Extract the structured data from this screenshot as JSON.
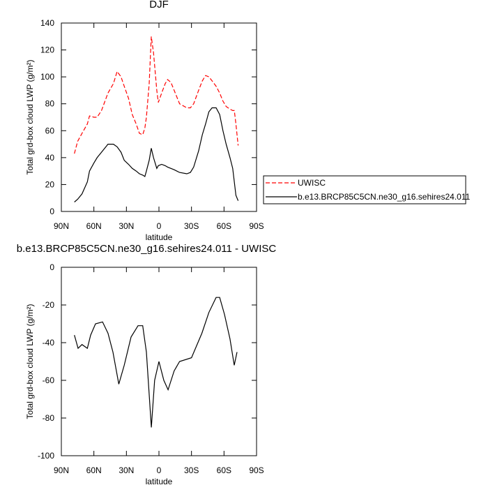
{
  "chart_data": [
    {
      "type": "line",
      "title": "DJF",
      "xlabel": "latitude",
      "ylabel": "Total grd-box cloud LWP (g/m²)",
      "x": [
        78,
        75,
        71,
        66,
        64,
        60,
        57,
        53,
        47,
        42,
        38.6,
        35,
        32,
        28,
        24.6,
        21,
        18,
        15,
        13,
        11.6,
        9,
        7.1,
        5,
        2,
        0.6,
        -2.5,
        -5.8,
        -8,
        -11,
        -14,
        -19,
        -25.7,
        -29,
        -32,
        -36.6,
        -40,
        -43,
        -46,
        -49,
        -52.7,
        -56,
        -59,
        -62,
        -65.5,
        -68,
        -69.5,
        -71,
        -73
      ],
      "series": [
        {
          "name": "UWISC",
          "color": "#ff0000",
          "dash": true,
          "values": [
            43,
            52,
            58,
            65,
            71,
            70,
            70,
            75,
            88,
            95,
            104,
            100,
            93,
            84,
            72,
            65,
            58,
            57,
            62,
            70,
            95,
            130,
            118,
            90,
            81,
            88,
            95,
            98,
            96,
            90,
            80,
            77,
            77,
            80,
            90,
            97,
            101,
            100,
            97,
            93,
            88,
            82,
            78,
            76,
            75,
            75,
            65,
            49
          ]
        },
        {
          "name": "b.e13.BRCP85C5CN.ne30_g16.sehires24.011",
          "color": "#000000",
          "values": [
            7,
            9,
            13,
            22,
            30,
            36,
            40,
            44,
            50,
            50,
            48,
            44,
            38,
            35,
            32,
            30,
            28,
            27,
            26,
            30,
            38,
            47,
            40,
            32,
            34,
            35,
            34,
            33,
            32,
            31,
            29,
            28,
            29,
            33,
            45,
            57,
            65,
            74,
            77,
            77,
            72,
            60,
            50,
            40,
            32,
            22,
            12,
            8
          ]
        }
      ],
      "xlim": [
        90,
        -90
      ],
      "xticks": [
        {
          "value": 90,
          "label": "90N"
        },
        {
          "value": 60,
          "label": "60N"
        },
        {
          "value": 30,
          "label": "30N"
        },
        0,
        {
          "value": -30,
          "label": "30S"
        },
        {
          "value": -60,
          "label": "60S"
        },
        {
          "value": -90,
          "label": "90S"
        }
      ],
      "ylim": [
        0,
        140
      ],
      "yticks": [
        0,
        20,
        40,
        60,
        80,
        100,
        120,
        140
      ],
      "legend": "right"
    },
    {
      "type": "line",
      "title": "b.e13.BRCP85C5CN.ne30_g16.sehires24.011 - UWISC",
      "xlabel": "latitude",
      "ylabel": "Total grd-box cloud LWP (g/m²)",
      "x": [
        78,
        74.6,
        71,
        66,
        63,
        58.5,
        52,
        47,
        42.4,
        37,
        32,
        25.7,
        19.3,
        15,
        11.6,
        7,
        4,
        0,
        -4.5,
        -8.4,
        -14,
        -19,
        -30,
        -39.6,
        -46,
        -52.7,
        -56,
        -60.4,
        -65.5,
        -69.4,
        -72
      ],
      "series": [
        {
          "color": "#000000",
          "values": [
            -36,
            -43,
            -41,
            -43,
            -36,
            -30,
            -29,
            -35,
            -45,
            -62,
            -52,
            -37,
            -31,
            -31,
            -45,
            -85,
            -60,
            -50,
            -60,
            -65,
            -55,
            -50,
            -48,
            -35,
            -24,
            -16,
            -16,
            -25,
            -38,
            -52,
            -45
          ]
        }
      ],
      "xlim": [
        90,
        -90
      ],
      "xticks": [
        {
          "value": 90,
          "label": "90N"
        },
        {
          "value": 60,
          "label": "60N"
        },
        {
          "value": 30,
          "label": "30N"
        },
        0,
        {
          "value": -30,
          "label": "30S"
        },
        {
          "value": -60,
          "label": "60S"
        },
        {
          "value": -90,
          "label": "90S"
        }
      ],
      "ylim": [
        -100,
        0
      ],
      "yticks": [
        -100,
        -80,
        -60,
        -40,
        -20,
        0
      ]
    }
  ]
}
